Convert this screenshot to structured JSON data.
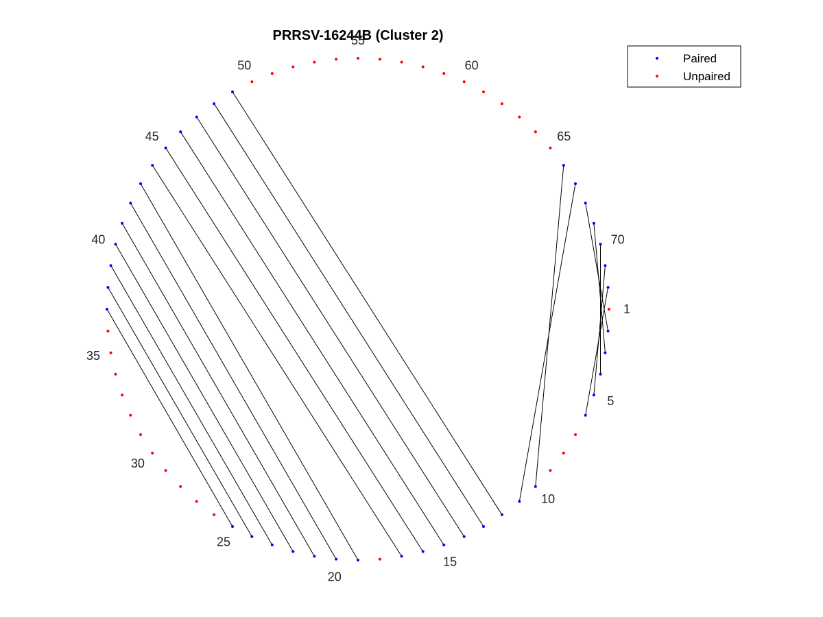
{
  "chart_data": {
    "type": "arc_diagram",
    "title": "PRRSV-16244B (Cluster 2)",
    "n_positions": 72,
    "pairs": [
      [
        2,
        68
      ],
      [
        3,
        69
      ],
      [
        4,
        70
      ],
      [
        5,
        71
      ],
      [
        6,
        72
      ],
      [
        10,
        66
      ],
      [
        11,
        67
      ],
      [
        12,
        49
      ],
      [
        13,
        48
      ],
      [
        14,
        47
      ],
      [
        15,
        46
      ],
      [
        16,
        45
      ],
      [
        17,
        44
      ],
      [
        19,
        43
      ],
      [
        20,
        42
      ],
      [
        21,
        41
      ],
      [
        22,
        40
      ],
      [
        23,
        39
      ],
      [
        24,
        38
      ],
      [
        25,
        37
      ]
    ],
    "tick_labels": [
      {
        "position": 1,
        "label": "1"
      },
      {
        "position": 5,
        "label": "5"
      },
      {
        "position": 10,
        "label": "10"
      },
      {
        "position": 15,
        "label": "15"
      },
      {
        "position": 20,
        "label": "20"
      },
      {
        "position": 25,
        "label": "25"
      },
      {
        "position": 30,
        "label": "30"
      },
      {
        "position": 35,
        "label": "35"
      },
      {
        "position": 40,
        "label": "40"
      },
      {
        "position": 45,
        "label": "45"
      },
      {
        "position": 50,
        "label": "50"
      },
      {
        "position": 55,
        "label": "55"
      },
      {
        "position": 60,
        "label": "60"
      },
      {
        "position": 65,
        "label": "65"
      },
      {
        "position": 70,
        "label": "70"
      }
    ],
    "legend": {
      "placement": "top-right",
      "entries": [
        {
          "label": "Paired",
          "color": "#0000ff"
        },
        {
          "label": "Unpaired",
          "color": "#ff0000"
        }
      ]
    },
    "colors": {
      "paired": "#0000ff",
      "unpaired": "#ff0000",
      "chord": "#000000"
    }
  }
}
